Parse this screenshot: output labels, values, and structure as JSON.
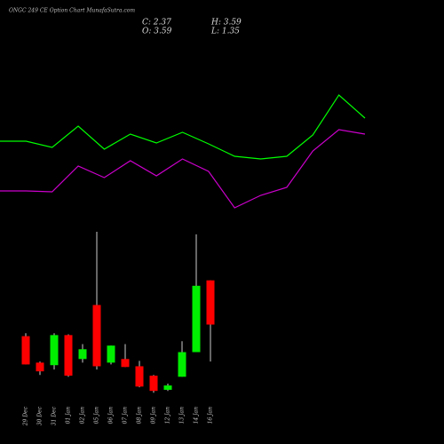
{
  "chart_data": [
    {
      "type": "line",
      "ylim": [
        0,
        100
      ],
      "series": [
        {
          "color": "#00ff00",
          "values": [
            50.5,
            50.5,
            47,
            59,
            46,
            54.5,
            49.5,
            55.5,
            49,
            42,
            40.5,
            42,
            54,
            76.5,
            63.5
          ]
        },
        {
          "color": "#cc00cc",
          "values": [
            22.5,
            22.5,
            22,
            36.5,
            30,
            39.5,
            31,
            40.5,
            33.5,
            13,
            20,
            24.5,
            45,
            57,
            54.5
          ]
        }
      ]
    },
    {
      "type": "candlestick",
      "title": "ONGC 249 CE Option Chart MunafaSutra.com",
      "ohlc_labels": [
        "C: 2.37",
        "H: 3.59",
        "O: 3.59",
        "L: 1.35"
      ],
      "categories": [
        "29 Dec",
        "30 Dec",
        "31 Dec",
        "01 Jan",
        "02 Jan",
        "05 Jan",
        "06 Jan",
        "07 Jan",
        "08 Jan",
        "09 Jan",
        "12 Jan",
        "13 Jan",
        "14 Jan",
        "16 Jan"
      ],
      "open": [
        2.05,
        1.32,
        1.25,
        2.08,
        1.42,
        2.91,
        1.32,
        1.42,
        1.22,
        0.96,
        0.57,
        0.93,
        1.61,
        3.59
      ],
      "high": [
        2.13,
        1.35,
        2.13,
        2.1,
        1.83,
        4.93,
        1.79,
        1.83,
        1.37,
        0.98,
        0.74,
        1.91,
        4.86,
        3.59
      ],
      "low": [
        1.27,
        0.98,
        1.13,
        0.93,
        1.32,
        1.13,
        1.27,
        1.2,
        0.64,
        0.49,
        0.54,
        0.93,
        1.61,
        1.35
      ],
      "close": [
        1.27,
        1.08,
        2.08,
        0.96,
        1.69,
        1.22,
        1.79,
        1.2,
        0.66,
        0.54,
        0.69,
        1.61,
        3.44,
        2.37
      ],
      "ylim": [
        0.3,
        5.2
      ],
      "up_color": "#00ee00",
      "down_color": "#ff0000"
    }
  ]
}
